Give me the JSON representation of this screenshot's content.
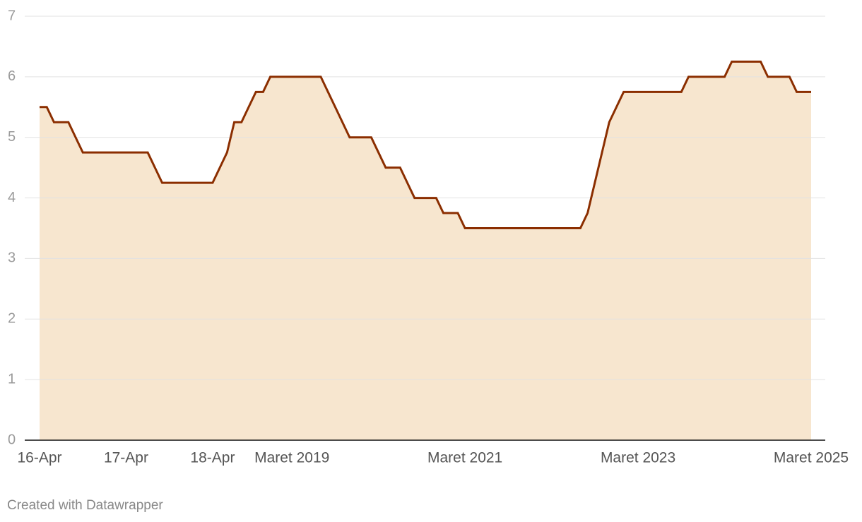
{
  "chart_data": {
    "type": "area",
    "categories": [
      "16-Apr",
      null,
      null,
      null,
      null,
      null,
      null,
      null,
      null,
      null,
      null,
      null,
      "17-Apr",
      null,
      null,
      null,
      null,
      null,
      null,
      null,
      null,
      null,
      null,
      null,
      "18-Apr",
      null,
      null,
      null,
      null,
      null,
      null,
      null,
      null,
      null,
      null,
      "Maret 2019",
      null,
      null,
      null,
      null,
      null,
      null,
      null,
      null,
      null,
      null,
      null,
      null,
      null,
      null,
      null,
      null,
      null,
      null,
      null,
      null,
      null,
      null,
      null,
      "Maret 2021",
      null,
      null,
      null,
      null,
      null,
      null,
      null,
      null,
      null,
      null,
      null,
      null,
      null,
      null,
      null,
      null,
      null,
      null,
      null,
      null,
      null,
      null,
      null,
      "Maret 2023",
      null,
      null,
      null,
      null,
      null,
      null,
      null,
      null,
      null,
      null,
      null,
      null,
      null,
      null,
      null,
      null,
      null,
      null,
      null,
      null,
      null,
      null,
      null,
      "Maret 2025"
    ],
    "series": [
      {
        "color": "#8b2e00",
        "fill": "#f7e6cf",
        "values": [
          5.5,
          5.5,
          5.25,
          5.25,
          5.25,
          5,
          4.75,
          4.75,
          4.75,
          4.75,
          4.75,
          4.75,
          4.75,
          4.75,
          4.75,
          4.75,
          4.5,
          4.25,
          4.25,
          4.25,
          4.25,
          4.25,
          4.25,
          4.25,
          4.25,
          4.5,
          4.75,
          5.25,
          5.25,
          5.5,
          5.75,
          5.75,
          6,
          6,
          6,
          6,
          6,
          6,
          6,
          6,
          5.75,
          5.5,
          5.25,
          5,
          5,
          5,
          5,
          4.75,
          4.5,
          4.5,
          4.5,
          4.25,
          4,
          4,
          4,
          4,
          3.75,
          3.75,
          3.75,
          3.5,
          3.5,
          3.5,
          3.5,
          3.5,
          3.5,
          3.5,
          3.5,
          3.5,
          3.5,
          3.5,
          3.5,
          3.5,
          3.5,
          3.5,
          3.5,
          3.5,
          3.75,
          4.25,
          4.75,
          5.25,
          5.5,
          5.75,
          5.75,
          5.75,
          5.75,
          5.75,
          5.75,
          5.75,
          5.75,
          5.75,
          6,
          6,
          6,
          6,
          6,
          6,
          6.25,
          6.25,
          6.25,
          6.25,
          6.25,
          6,
          6,
          6,
          6,
          5.75,
          5.75,
          5.75
        ]
      }
    ],
    "ylim": [
      0,
      7
    ],
    "yticks": [
      0,
      1,
      2,
      3,
      4,
      5,
      6,
      7
    ],
    "grid": true,
    "footer": "Created with Datawrapper"
  }
}
